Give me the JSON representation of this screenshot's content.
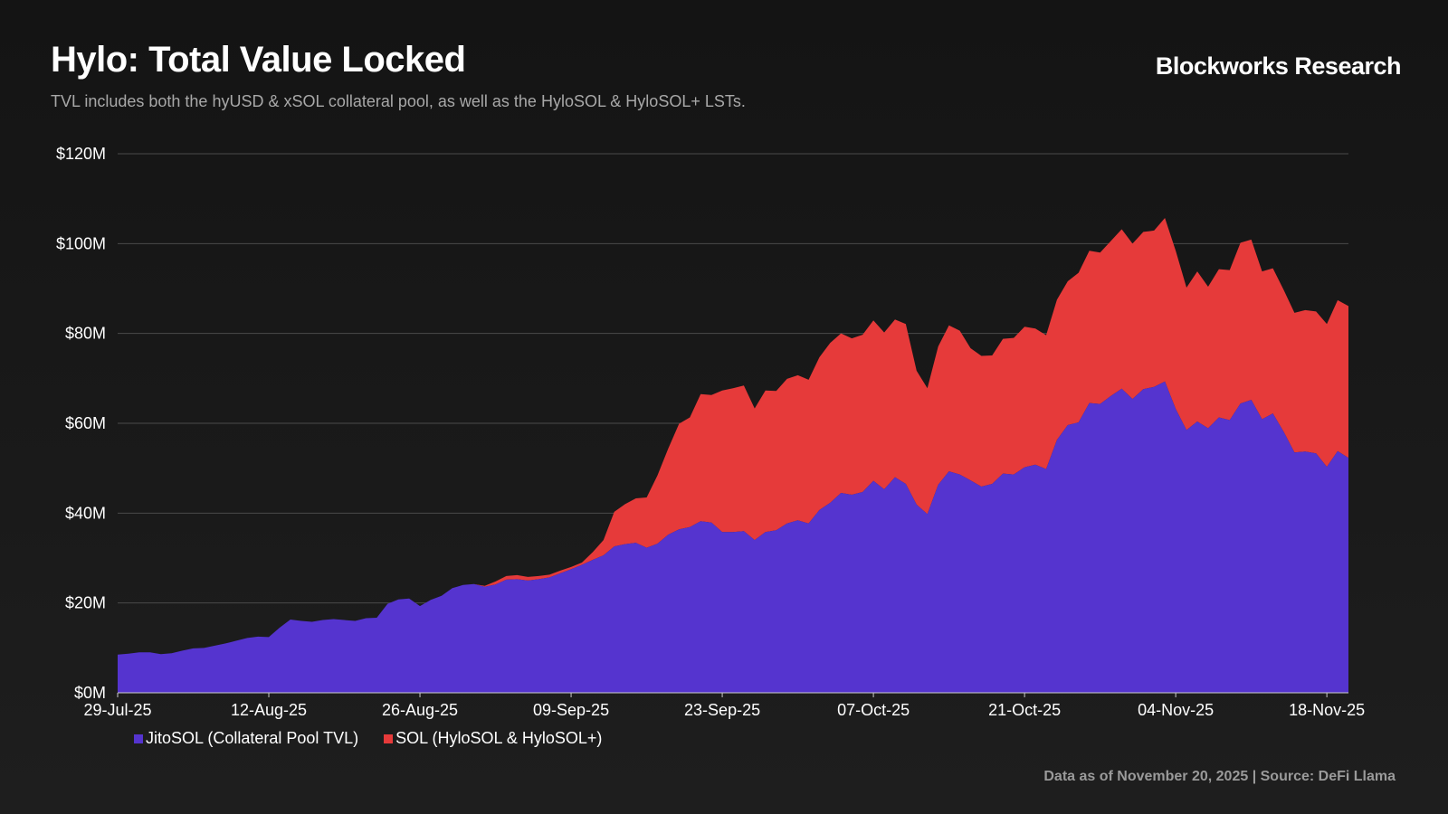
{
  "header": {
    "title": "Hylo: Total Value Locked",
    "subtitle": "TVL includes both the hyUSD & xSOL collateral pool, as well as the HyloSOL & HyloSOL+ LSTs.",
    "brand": "Blockworks Research"
  },
  "footer": {
    "note": "Data as of November 20, 2025 | Source: DeFi Llama"
  },
  "chart_data": {
    "type": "area",
    "stacked": true,
    "title": "Hylo: Total Value Locked",
    "xlabel": "",
    "ylabel": "",
    "ylim": [
      0,
      120
    ],
    "y_unit": "$M",
    "y_ticks": [
      0,
      20,
      40,
      60,
      80,
      100,
      120
    ],
    "y_tick_labels": [
      "$0M",
      "$20M",
      "$40M",
      "$60M",
      "$80M",
      "$100M",
      "$120M"
    ],
    "x_tick_labels": [
      "29-Jul-25",
      "12-Aug-25",
      "26-Aug-25",
      "09-Sep-25",
      "23-Sep-25",
      "07-Oct-25",
      "21-Oct-25",
      "04-Nov-25",
      "18-Nov-25"
    ],
    "x_start": "2025-07-29",
    "x_end": "2025-11-20",
    "grid": true,
    "legend_position": "bottom-left",
    "x": [
      "2025-07-29",
      "2025-07-30",
      "2025-07-31",
      "2025-08-01",
      "2025-08-02",
      "2025-08-03",
      "2025-08-04",
      "2025-08-05",
      "2025-08-06",
      "2025-08-07",
      "2025-08-08",
      "2025-08-09",
      "2025-08-10",
      "2025-08-11",
      "2025-08-12",
      "2025-08-13",
      "2025-08-14",
      "2025-08-15",
      "2025-08-16",
      "2025-08-17",
      "2025-08-18",
      "2025-08-19",
      "2025-08-20",
      "2025-08-21",
      "2025-08-22",
      "2025-08-23",
      "2025-08-24",
      "2025-08-25",
      "2025-08-26",
      "2025-08-27",
      "2025-08-28",
      "2025-08-29",
      "2025-08-30",
      "2025-08-31",
      "2025-09-01",
      "2025-09-02",
      "2025-09-03",
      "2025-09-04",
      "2025-09-05",
      "2025-09-06",
      "2025-09-07",
      "2025-09-08",
      "2025-09-09",
      "2025-09-10",
      "2025-09-11",
      "2025-09-12",
      "2025-09-13",
      "2025-09-14",
      "2025-09-15",
      "2025-09-16",
      "2025-09-17",
      "2025-09-18",
      "2025-09-19",
      "2025-09-20",
      "2025-09-21",
      "2025-09-22",
      "2025-09-23",
      "2025-09-24",
      "2025-09-25",
      "2025-09-26",
      "2025-09-27",
      "2025-09-28",
      "2025-09-29",
      "2025-09-30",
      "2025-10-01",
      "2025-10-02",
      "2025-10-03",
      "2025-10-04",
      "2025-10-05",
      "2025-10-06",
      "2025-10-07",
      "2025-10-08",
      "2025-10-09",
      "2025-10-10",
      "2025-10-11",
      "2025-10-12",
      "2025-10-13",
      "2025-10-14",
      "2025-10-15",
      "2025-10-16",
      "2025-10-17",
      "2025-10-18",
      "2025-10-19",
      "2025-10-20",
      "2025-10-21",
      "2025-10-22",
      "2025-10-23",
      "2025-10-24",
      "2025-10-25",
      "2025-10-26",
      "2025-10-27",
      "2025-10-28",
      "2025-10-29",
      "2025-10-30",
      "2025-10-31",
      "2025-11-01",
      "2025-11-02",
      "2025-11-03",
      "2025-11-04",
      "2025-11-05",
      "2025-11-06",
      "2025-11-07",
      "2025-11-08",
      "2025-11-09",
      "2025-11-10",
      "2025-11-11",
      "2025-11-12",
      "2025-11-13",
      "2025-11-14",
      "2025-11-15",
      "2025-11-16",
      "2025-11-17",
      "2025-11-18",
      "2025-11-19",
      "2025-11-20"
    ],
    "series": [
      {
        "name": "JitoSOL (Collateral Pool TVL)",
        "color": "#5534cf",
        "values": [
          8.5,
          8.7,
          9.0,
          9.0,
          8.6,
          8.8,
          9.4,
          9.9,
          10.0,
          10.5,
          11.0,
          11.6,
          12.2,
          12.5,
          12.4,
          14.5,
          16.3,
          16.0,
          15.8,
          16.2,
          16.4,
          16.2,
          16.0,
          16.6,
          16.7,
          19.8,
          20.8,
          21.0,
          19.3,
          20.7,
          21.6,
          23.3,
          24.0,
          24.2,
          23.6,
          24.1,
          25.2,
          25.3,
          25.0,
          25.3,
          25.7,
          26.6,
          27.5,
          28.5,
          29.6,
          30.6,
          32.6,
          33.1,
          33.4,
          32.3,
          33.2,
          35.2,
          36.4,
          36.9,
          38.2,
          37.9,
          35.8,
          35.8,
          36.0,
          34.0,
          35.8,
          36.2,
          37.7,
          38.4,
          37.7,
          40.7,
          42.3,
          44.5,
          44.1,
          44.7,
          47.2,
          45.3,
          48.0,
          46.5,
          41.9,
          39.8,
          46.3,
          49.3,
          48.6,
          47.3,
          45.9,
          46.5,
          48.8,
          48.6,
          50.2,
          50.8,
          49.8,
          56.3,
          59.6,
          60.2,
          64.5,
          64.3,
          66.1,
          67.7,
          65.4,
          67.6,
          68.1,
          69.3,
          63.2,
          58.5,
          60.4,
          58.9,
          61.3,
          60.7,
          64.4,
          65.2,
          60.9,
          62.2,
          58.1,
          53.5,
          53.7,
          53.3,
          50.3,
          53.8,
          52.3
        ]
      },
      {
        "name": "SOL (HyloSOL & HyloSOL+)",
        "color": "#e63a3a",
        "values": [
          0,
          0,
          0,
          0,
          0,
          0,
          0,
          0,
          0,
          0,
          0,
          0,
          0,
          0,
          0,
          0,
          0,
          0,
          0,
          0,
          0,
          0,
          0,
          0,
          0,
          0,
          0,
          0,
          0,
          0,
          0,
          0,
          0,
          0,
          0.2,
          0.7,
          0.8,
          0.9,
          0.8,
          0.7,
          0.6,
          0.6,
          0.5,
          0.5,
          1.7,
          3.4,
          7.7,
          8.9,
          9.9,
          11.2,
          15.2,
          19.2,
          23.5,
          24.4,
          28.3,
          28.4,
          31.5,
          32.0,
          32.4,
          29.3,
          31.5,
          31.0,
          32.2,
          32.3,
          32.0,
          34.0,
          35.6,
          35.5,
          34.8,
          35.0,
          35.7,
          34.9,
          35.1,
          35.6,
          29.8,
          28.0,
          30.8,
          32.5,
          32.0,
          29.4,
          29.1,
          28.6,
          30.0,
          30.4,
          31.3,
          30.3,
          29.8,
          31.2,
          32.0,
          33.3,
          33.9,
          33.7,
          34.5,
          35.5,
          34.6,
          35.0,
          34.8,
          36.4,
          35.2,
          31.7,
          33.4,
          31.5,
          33.0,
          33.4,
          35.8,
          35.7,
          32.9,
          32.3,
          31.6,
          31.1,
          31.5,
          31.6,
          31.8,
          33.6,
          33.8
        ]
      }
    ]
  }
}
